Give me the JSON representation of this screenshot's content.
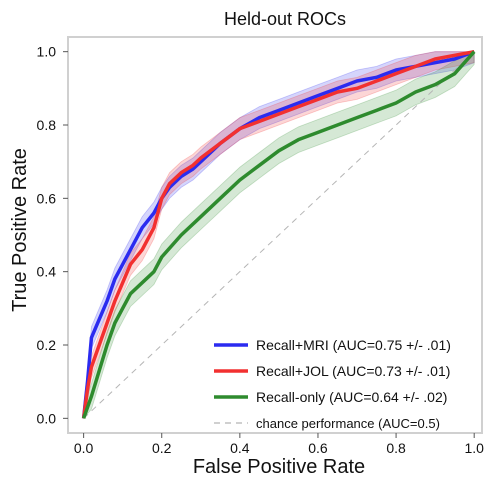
{
  "chart_data": {
    "type": "line",
    "title": "Held-out ROCs",
    "xlabel": "False Positive Rate",
    "ylabel": "True Positive Rate",
    "xlim": [
      -0.04,
      1.02
    ],
    "ylim": [
      -0.04,
      1.04
    ],
    "xticks": [
      "0.0",
      "0.2",
      "0.4",
      "0.6",
      "0.8",
      "1.0"
    ],
    "yticks": [
      "0.0",
      "0.2",
      "0.4",
      "0.6",
      "0.8",
      "1.0"
    ],
    "grid": false,
    "legend_position": "lower-right",
    "series": [
      {
        "name": "Recall+MRI (AUC=0.75 +/- .01)",
        "color": "#2b2bf0",
        "band": 0.03,
        "x": [
          0.0,
          0.01,
          0.02,
          0.04,
          0.06,
          0.08,
          0.1,
          0.12,
          0.15,
          0.18,
          0.2,
          0.22,
          0.25,
          0.28,
          0.3,
          0.35,
          0.4,
          0.45,
          0.5,
          0.55,
          0.6,
          0.65,
          0.7,
          0.75,
          0.8,
          0.85,
          0.9,
          0.95,
          1.0
        ],
        "y": [
          0.0,
          0.1,
          0.22,
          0.27,
          0.32,
          0.38,
          0.42,
          0.46,
          0.52,
          0.56,
          0.6,
          0.63,
          0.66,
          0.68,
          0.7,
          0.75,
          0.79,
          0.82,
          0.84,
          0.86,
          0.88,
          0.9,
          0.92,
          0.93,
          0.95,
          0.96,
          0.97,
          0.98,
          1.0
        ]
      },
      {
        "name": "Recall+JOL (AUC=0.73 +/- .01)",
        "color": "#f23030",
        "band": 0.03,
        "x": [
          0.0,
          0.01,
          0.02,
          0.04,
          0.06,
          0.08,
          0.1,
          0.12,
          0.15,
          0.18,
          0.2,
          0.22,
          0.25,
          0.28,
          0.3,
          0.35,
          0.4,
          0.45,
          0.5,
          0.55,
          0.6,
          0.65,
          0.7,
          0.75,
          0.8,
          0.85,
          0.9,
          0.95,
          1.0
        ],
        "y": [
          0.0,
          0.08,
          0.14,
          0.2,
          0.26,
          0.32,
          0.37,
          0.42,
          0.46,
          0.52,
          0.6,
          0.64,
          0.67,
          0.69,
          0.71,
          0.75,
          0.79,
          0.81,
          0.83,
          0.85,
          0.87,
          0.89,
          0.9,
          0.92,
          0.94,
          0.96,
          0.98,
          0.99,
          1.0
        ]
      },
      {
        "name": "Recall-only (AUC=0.64 +/- .02)",
        "color": "#2e8b2e",
        "band": 0.035,
        "x": [
          0.0,
          0.02,
          0.04,
          0.06,
          0.08,
          0.1,
          0.12,
          0.15,
          0.18,
          0.2,
          0.25,
          0.3,
          0.35,
          0.4,
          0.45,
          0.5,
          0.55,
          0.6,
          0.65,
          0.7,
          0.75,
          0.8,
          0.85,
          0.9,
          0.95,
          1.0
        ],
        "y": [
          0.0,
          0.06,
          0.13,
          0.2,
          0.26,
          0.3,
          0.34,
          0.37,
          0.4,
          0.44,
          0.5,
          0.55,
          0.6,
          0.65,
          0.69,
          0.73,
          0.76,
          0.78,
          0.8,
          0.82,
          0.84,
          0.86,
          0.89,
          0.91,
          0.94,
          1.0
        ]
      },
      {
        "name": "chance performance (AUC=0.5)",
        "color": "#b5b5b5",
        "dashed": true,
        "x": [
          0.0,
          1.0
        ],
        "y": [
          0.0,
          1.0
        ]
      }
    ]
  }
}
